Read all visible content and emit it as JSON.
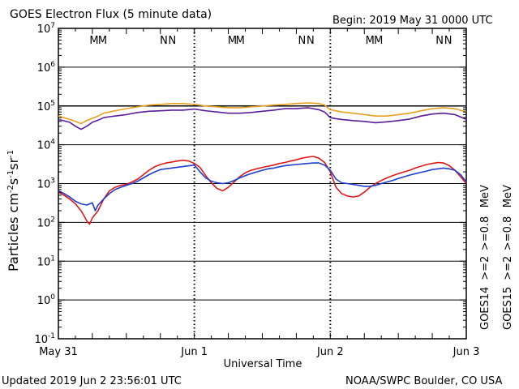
{
  "header": {
    "title": "GOES Electron Flux (5 minute data)",
    "begin": "Begin: 2019 May 31 0000 UTC"
  },
  "footer": {
    "updated": "Updated 2019 Jun  2 23:56:01 UTC",
    "source": "NOAA/SWPC Boulder, CO USA"
  },
  "chart_data": {
    "type": "line",
    "title": "GOES Electron Flux (5 minute data)",
    "xlabel": "Universal Time",
    "ylabel": "Particles cm-2s-1sr-1",
    "yscale": "log",
    "ylim": [
      0.1,
      10000000
    ],
    "xlim": [
      0,
      72
    ],
    "x_unit": "hours since 2019 May 31 0000 UTC",
    "x_ticks": [
      {
        "x": 0,
        "label": "May 31"
      },
      {
        "x": 24,
        "label": "Jun 1"
      },
      {
        "x": 48,
        "label": "Jun 2"
      },
      {
        "x": 72,
        "label": "Jun 3"
      }
    ],
    "y_tick_exponents": [
      -1,
      0,
      1,
      2,
      3,
      4,
      5,
      6,
      7
    ],
    "threshold_line": 1000,
    "reference_line": 100000,
    "legend_placement": "right",
    "legend": [
      {
        "text": "GOES14",
        "color": "#000000",
        "group": "goes14"
      },
      {
        "text": ">=2",
        "color": "#1f3fcf",
        "group": "goes14"
      },
      {
        "text": ">=0.8",
        "color": "#5a1d9a",
        "group": "goes14"
      },
      {
        "text": "MeV",
        "color": "#000000",
        "group": "goes14"
      },
      {
        "text": "GOES15",
        "color": "#000000",
        "group": "goes15"
      },
      {
        "text": ">=2",
        "color": "#e01818",
        "group": "goes15"
      },
      {
        "text": ">=0.8",
        "color": "#e8a020",
        "group": "goes15"
      },
      {
        "text": "MeV",
        "color": "#000000",
        "group": "goes15"
      }
    ],
    "markers": [
      {
        "text": "M",
        "x": 6.3,
        "color": "#1f3fcf"
      },
      {
        "text": "M",
        "x": 7.8,
        "color": "#e01818"
      },
      {
        "text": "N",
        "x": 18.6,
        "color": "#1f3fcf"
      },
      {
        "text": "N",
        "x": 20.1,
        "color": "#e01818"
      },
      {
        "text": "M",
        "x": 30.7,
        "color": "#1f3fcf"
      },
      {
        "text": "M",
        "x": 32.1,
        "color": "#e01818"
      },
      {
        "text": "N",
        "x": 43.0,
        "color": "#1f3fcf"
      },
      {
        "text": "N",
        "x": 44.5,
        "color": "#e01818"
      },
      {
        "text": "M",
        "x": 55.0,
        "color": "#1f3fcf"
      },
      {
        "text": "M",
        "x": 56.5,
        "color": "#e01818"
      },
      {
        "text": "N",
        "x": 67.3,
        "color": "#1f3fcf"
      },
      {
        "text": "N",
        "x": 68.8,
        "color": "#e01818"
      }
    ],
    "series": [
      {
        "color": "#e8a020",
        "x": [
          0,
          2,
          3,
          4,
          5,
          6,
          7,
          8,
          9,
          10,
          12,
          14,
          16,
          18,
          20,
          22,
          24,
          26,
          28,
          30,
          32,
          34,
          36,
          38,
          40,
          42,
          44,
          46,
          47,
          48,
          49,
          50,
          52,
          54,
          56,
          58,
          60,
          62,
          64,
          66,
          68,
          70,
          72
        ],
        "values": [
          55000.0,
          45000.0,
          40000.0,
          35000.0,
          42000.0,
          48000.0,
          55000.0,
          65000.0,
          70000.0,
          75000.0,
          85000.0,
          95000.0,
          105000.0,
          110000.0,
          115000.0,
          115000.0,
          110000.0,
          100000.0,
          95000.0,
          90000.0,
          90000.0,
          95000.0,
          100000.0,
          105000.0,
          110000.0,
          115000.0,
          120000.0,
          115000.0,
          105000.0,
          80000.0,
          75000.0,
          70000.0,
          65000.0,
          60000.0,
          55000.0,
          55000.0,
          60000.0,
          65000.0,
          75000.0,
          85000.0,
          90000.0,
          85000.0,
          70000.0
        ]
      },
      {
        "color": "#5a1d9a",
        "x": [
          0,
          2,
          3,
          4,
          5,
          6,
          7,
          8,
          9,
          10,
          12,
          14,
          16,
          18,
          20,
          22,
          24,
          26,
          28,
          30,
          32,
          34,
          36,
          38,
          40,
          42,
          44,
          46,
          47,
          48,
          49,
          50,
          52,
          54,
          56,
          58,
          60,
          62,
          64,
          66,
          68,
          70,
          72
        ],
        "values": [
          45000.0,
          38000.0,
          30000.0,
          25000.0,
          30000.0,
          38000.0,
          43000.0,
          50000.0,
          53000.0,
          55000.0,
          60000.0,
          68000.0,
          73000.0,
          75000.0,
          78000.0,
          78000.0,
          83000.0,
          75000.0,
          70000.0,
          65000.0,
          65000.0,
          68000.0,
          73000.0,
          78000.0,
          85000.0,
          85000.0,
          90000.0,
          80000.0,
          70000.0,
          50000.0,
          47000.0,
          45000.0,
          42000.0,
          40000.0,
          37000.0,
          39000.0,
          42000.0,
          46000.0,
          55000.0,
          62000.0,
          65000.0,
          60000.0,
          45000.0
        ]
      },
      {
        "color": "#e01818",
        "x": [
          0,
          1,
          2,
          3,
          4,
          4.5,
          5,
          5.5,
          6,
          7,
          8,
          9,
          10,
          11,
          12,
          13,
          14,
          15,
          16,
          17,
          18,
          19,
          20,
          21,
          22,
          23,
          24,
          25,
          26,
          27,
          28,
          29,
          30,
          31,
          32,
          33,
          34,
          35,
          36,
          37,
          38,
          39,
          40,
          41,
          42,
          43,
          44,
          45,
          46,
          47,
          48,
          49,
          50,
          51,
          52,
          53,
          54,
          55,
          56,
          57,
          58,
          59,
          60,
          61,
          62,
          63,
          64,
          65,
          66,
          67,
          68,
          69,
          70,
          71,
          72
        ],
        "values": [
          600,
          500,
          400,
          300,
          200,
          150,
          110,
          90,
          130,
          200,
          400,
          650,
          800,
          900,
          950,
          1100,
          1300,
          1700,
          2200,
          2700,
          3100,
          3400,
          3600,
          3800,
          4000,
          3800,
          3300,
          2600,
          1600,
          1050,
          750,
          650,
          800,
          1100,
          1500,
          1900,
          2200,
          2400,
          2600,
          2800,
          3000,
          3300,
          3500,
          3800,
          4100,
          4500,
          4800,
          5000,
          4500,
          3500,
          2000,
          800,
          550,
          480,
          450,
          480,
          600,
          800,
          1000,
          1200,
          1400,
          1600,
          1800,
          2000,
          2200,
          2500,
          2800,
          3100,
          3300,
          3500,
          3400,
          2900,
          2200,
          1500,
          1000
        ]
      },
      {
        "color": "#1f3fcf",
        "x": [
          0,
          1,
          2,
          3,
          4,
          5,
          6,
          6.5,
          7,
          8,
          9,
          10,
          11,
          12,
          13,
          14,
          15,
          16,
          17,
          18,
          24,
          25,
          26,
          27,
          28,
          29,
          30,
          31,
          32,
          33,
          34,
          35,
          36,
          37,
          38,
          39,
          40,
          41,
          42,
          43,
          44,
          45,
          46,
          47,
          48,
          49,
          50,
          51,
          52,
          53,
          54,
          55,
          56,
          57,
          58,
          59,
          60,
          61,
          62,
          63,
          64,
          65,
          66,
          67,
          68,
          69,
          70,
          71,
          72
        ],
        "values": [
          650,
          550,
          450,
          350,
          300,
          280,
          320,
          200,
          280,
          400,
          550,
          700,
          800,
          900,
          1000,
          1150,
          1400,
          1700,
          2000,
          2300,
          3000,
          2000,
          1400,
          1150,
          1050,
          1000,
          1050,
          1200,
          1400,
          1600,
          1800,
          2000,
          2200,
          2400,
          2500,
          2700,
          2900,
          3000,
          3100,
          3200,
          3300,
          3400,
          3400,
          3000,
          2200,
          1300,
          1050,
          1000,
          950,
          900,
          850,
          850,
          900,
          1000,
          1100,
          1200,
          1350,
          1500,
          1650,
          1800,
          1950,
          2100,
          2300,
          2400,
          2500,
          2400,
          2200,
          1700,
          1100
        ]
      }
    ]
  }
}
